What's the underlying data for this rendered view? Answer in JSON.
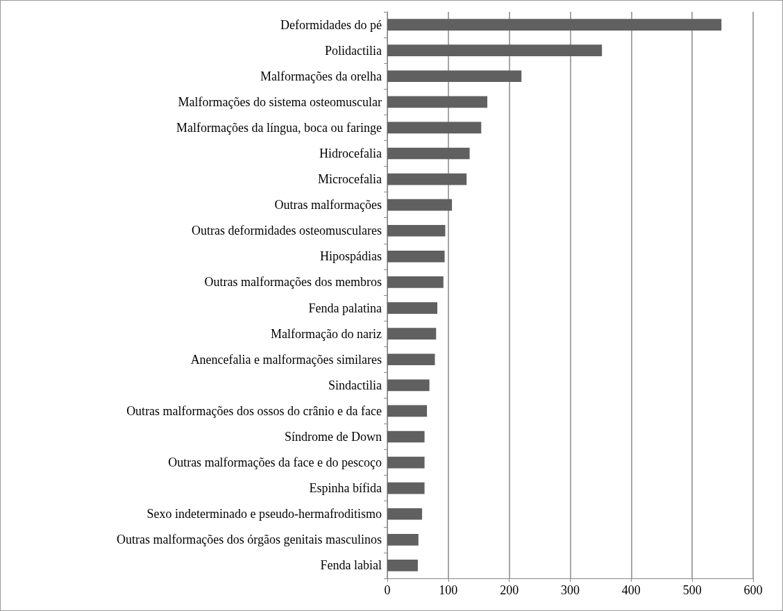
{
  "chart_data": {
    "type": "bar",
    "orientation": "horizontal",
    "categories": [
      "Deformidades do pé",
      "Polidactilia",
      "Malformações da orelha",
      "Malformações do sistema osteomuscular",
      "Malformações da língua, boca ou faringe",
      "Hidrocefalia",
      "Microcefalia",
      "Outras malformações",
      "Outras deformidades osteomusculares",
      "Hipospádias",
      "Outras malformações dos membros",
      "Fenda palatina",
      "Malformação do nariz",
      "Anencefalia e malformações similares",
      "Sindactilia",
      "Outras malformações dos ossos do crânio e da face",
      "Síndrome de Down",
      "Outras malformações da face e do pescoço",
      "Espinha bífida",
      "Sexo indeterminado e pseudo-hermafroditismo",
      "Outras malformações dos órgãos genitais masculinos",
      "Fenda labial"
    ],
    "values": [
      548,
      352,
      220,
      164,
      154,
      135,
      130,
      106,
      95,
      94,
      92,
      82,
      80,
      78,
      69,
      65,
      61,
      61,
      61,
      57,
      51,
      50
    ],
    "color": "#606060",
    "xlim": [
      0,
      600
    ],
    "xticks": [
      0,
      100,
      200,
      300,
      400,
      500,
      600
    ],
    "grid": "x"
  }
}
